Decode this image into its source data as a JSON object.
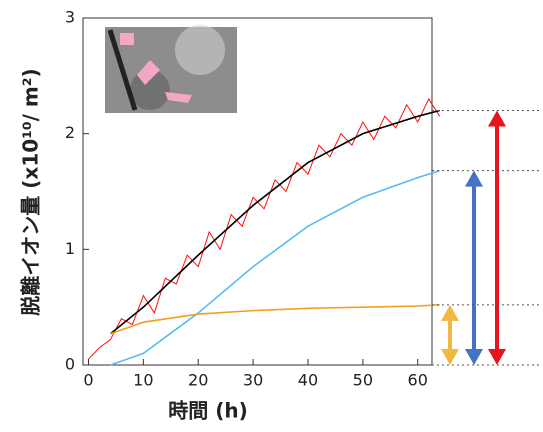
{
  "chart_data": {
    "type": "line",
    "xlabel": "時間 (h)",
    "ylabel": "脱離イオン量 (x10¹⁰/ m²)",
    "xlim": [
      -1,
      62.6
    ],
    "ylim": [
      0,
      3
    ],
    "xticks": [
      0,
      10,
      20,
      30,
      40,
      50,
      60
    ],
    "yticks": [
      0,
      1,
      2,
      3
    ],
    "series": [
      {
        "color": "#ff1010",
        "x": [
          0,
          2,
          4,
          6,
          8,
          10,
          12,
          14,
          16,
          18,
          20,
          22,
          24,
          26,
          28,
          30,
          32,
          34,
          36,
          38,
          40,
          42,
          44,
          46,
          48,
          50,
          52,
          54,
          56,
          58,
          60,
          62,
          64
        ],
        "values": [
          0.05,
          0.15,
          0.22,
          0.4,
          0.35,
          0.6,
          0.45,
          0.75,
          0.7,
          0.95,
          0.85,
          1.15,
          1.0,
          1.3,
          1.2,
          1.45,
          1.35,
          1.6,
          1.5,
          1.75,
          1.65,
          1.9,
          1.8,
          2.0,
          1.9,
          2.1,
          1.95,
          2.15,
          2.05,
          2.25,
          2.1,
          2.3,
          2.15
        ]
      },
      {
        "color": "#000000",
        "x": [
          4,
          10,
          20,
          30,
          40,
          50,
          60,
          64
        ],
        "values": [
          0.27,
          0.5,
          0.95,
          1.38,
          1.75,
          2.0,
          2.15,
          2.2
        ]
      },
      {
        "color": "#5bbcf0",
        "x": [
          4,
          10,
          20,
          30,
          40,
          50,
          60,
          64
        ],
        "values": [
          0,
          0.1,
          0.45,
          0.85,
          1.2,
          1.45,
          1.62,
          1.68
        ]
      },
      {
        "color": "#f0a020",
        "x": [
          4,
          10,
          20,
          30,
          40,
          50,
          60,
          64
        ],
        "values": [
          0.27,
          0.37,
          0.44,
          0.47,
          0.49,
          0.5,
          0.51,
          0.52
        ]
      }
    ],
    "arrows": [
      {
        "color": "#e8141c"
      },
      {
        "color": "#4472c4"
      },
      {
        "color": "#f0b840"
      }
    ]
  }
}
